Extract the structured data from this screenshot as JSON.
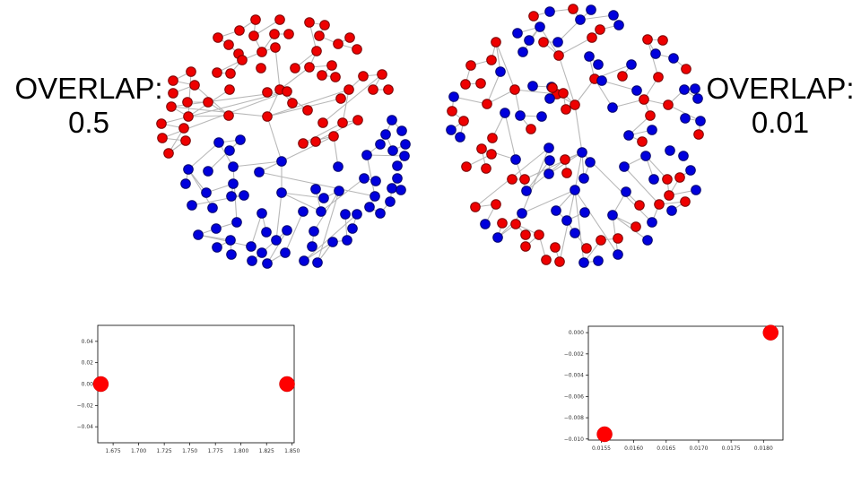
{
  "left_panel": {
    "label_line1": "OVERLAP:",
    "label_line2": "0.5"
  },
  "right_panel": {
    "label_line1": "OVERLAP:",
    "label_line2": "0.01"
  },
  "colors": {
    "red_community": "#ee0000",
    "blue_community": "#0000dd",
    "edge": "#b8b8b8",
    "scatter_point": "#ff0000"
  },
  "chart_data": [
    {
      "type": "scatter",
      "title": "",
      "xlabel": "",
      "ylabel": "",
      "xlim": [
        1.66,
        1.852
      ],
      "ylim": [
        -0.055,
        0.055
      ],
      "xticks": [
        "1.675",
        "1.700",
        "1.725",
        "1.750",
        "1.775",
        "1.800",
        "1.825",
        "1.850"
      ],
      "yticks": [
        "0.04",
        "0.02",
        "0.00",
        "−0.02",
        "−0.04"
      ],
      "xtick_values": [
        1.675,
        1.7,
        1.725,
        1.75,
        1.775,
        1.8,
        1.825,
        1.85
      ],
      "ytick_values": [
        0.04,
        0.02,
        0.0,
        -0.02,
        -0.04
      ],
      "x": [
        1.663,
        1.845
      ],
      "y": [
        0.0,
        0.0
      ],
      "grid": false
    },
    {
      "type": "scatter",
      "title": "",
      "xlabel": "",
      "ylabel": "",
      "xlim": [
        0.0153,
        0.0183
      ],
      "ylim": [
        -0.0101,
        0.0006
      ],
      "xticks": [
        "0.0155",
        "0.0160",
        "0.0165",
        "0.0170",
        "0.0175",
        "0.0180"
      ],
      "yticks": [
        "0.000",
        "−0.002",
        "−0.004",
        "−0.006",
        "−0.008",
        "−0.010"
      ],
      "xtick_values": [
        0.0155,
        0.016,
        0.0165,
        0.017,
        0.0175,
        0.018
      ],
      "ytick_values": [
        0.0,
        -0.002,
        -0.004,
        -0.006,
        -0.008,
        -0.01
      ],
      "x": [
        0.01555,
        0.01811
      ],
      "y": [
        -0.00955,
        0.0
      ],
      "grid": false
    }
  ]
}
